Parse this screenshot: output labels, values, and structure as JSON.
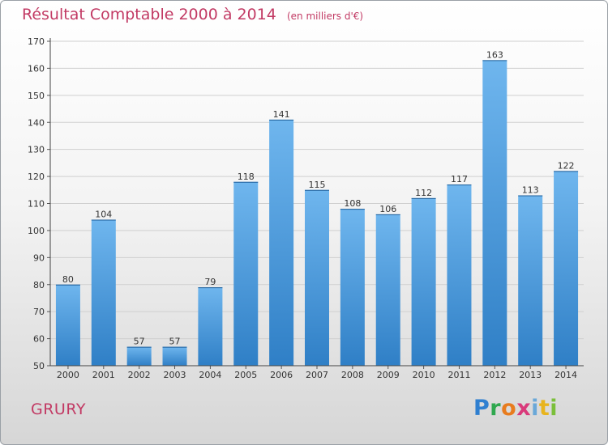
{
  "header": {
    "title": "Résultat Comptable 2000 à 2014",
    "unit": "(en milliers d'€)"
  },
  "commune": "GRURY",
  "logo": {
    "letters": [
      "P",
      "r",
      "o",
      "x",
      "i",
      "t",
      "i"
    ]
  },
  "colors": {
    "bar": "#3a8fd6",
    "bar_light": "#6fb6ee",
    "title": "#c23a64",
    "grid": "#cfcfcf"
  },
  "chart_data": {
    "type": "bar",
    "title": "Résultat Comptable 2000 à 2014",
    "subtitle": "(en milliers d'€)",
    "categories": [
      "2000",
      "2001",
      "2002",
      "2003",
      "2004",
      "2005",
      "2006",
      "2007",
      "2008",
      "2009",
      "2010",
      "2011",
      "2012",
      "2013",
      "2014"
    ],
    "values": [
      80,
      104,
      57,
      57,
      79,
      118,
      141,
      115,
      108,
      106,
      112,
      117,
      163,
      113,
      122
    ],
    "ylim": [
      50,
      170
    ],
    "yticks": [
      50,
      60,
      70,
      80,
      90,
      100,
      110,
      120,
      130,
      140,
      150,
      160,
      170
    ],
    "grid": true,
    "data_labels": true
  }
}
